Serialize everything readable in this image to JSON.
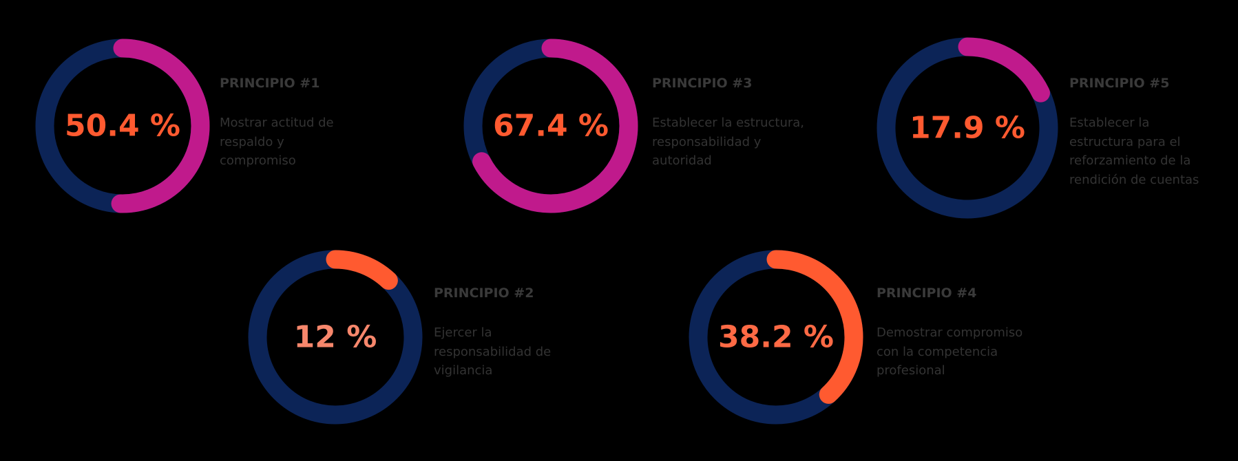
{
  "chart_data": [
    {
      "type": "donut",
      "title": "PRINCIPIO #1",
      "description": [
        "Mostrar actitud de",
        "respaldo y",
        "compromiso"
      ],
      "values": [
        50.4
      ],
      "value_labels": [
        "50.4 %"
      ],
      "ylim": [
        0,
        100
      ],
      "color": "#c01a8c",
      "track_color": "#0c2457",
      "label_color": "#ff5a30"
    },
    {
      "type": "donut",
      "title": "PRINCIPIO #3",
      "description": [
        "Establecer la estructura,",
        "responsabilidad y",
        "autoridad"
      ],
      "values": [
        67.4
      ],
      "value_labels": [
        "67.4 %"
      ],
      "ylim": [
        0,
        100
      ],
      "color": "#c01a8c",
      "track_color": "#0c2457",
      "label_color": "#ff5a30"
    },
    {
      "type": "donut",
      "title": "PRINCIPIO #5",
      "description": [
        "Establecer la",
        "estructura para el",
        "reforzamiento de la",
        "rendición de cuentas"
      ],
      "values": [
        17.9
      ],
      "value_labels": [
        "17.9 %"
      ],
      "ylim": [
        0,
        100
      ],
      "color": "#c01a8c",
      "track_color": "#0c2457",
      "label_color": "#ff5a30"
    },
    {
      "type": "donut",
      "title": "PRINCIPIO #2",
      "description": [
        "Ejercer la",
        "responsabilidad de",
        "vigilancia"
      ],
      "values": [
        12
      ],
      "value_labels": [
        "12 %"
      ],
      "ylim": [
        0,
        100
      ],
      "color": "#ff5a30",
      "track_color": "#0c2457",
      "label_color": "#f7876c"
    },
    {
      "type": "donut",
      "title": "PRINCIPIO #4",
      "description": [
        "Demostrar compromiso",
        "con la competencia",
        "profesional"
      ],
      "values": [
        38.2
      ],
      "value_labels": [
        "38.2 %"
      ],
      "ylim": [
        0,
        100
      ],
      "color": "#ff5a30",
      "track_color": "#0c2457",
      "label_color": "#ff6a45"
    }
  ]
}
